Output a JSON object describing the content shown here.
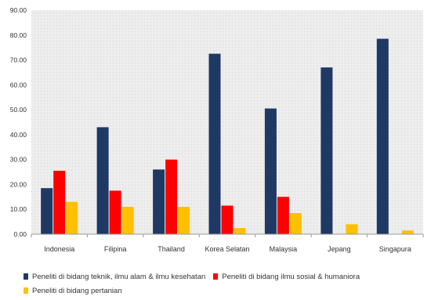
{
  "chart_data": {
    "type": "bar",
    "categories": [
      "Indonesia",
      "Filipina",
      "Thailand",
      "Korea Selatan",
      "Malaysia",
      "Jepang",
      "Singapura"
    ],
    "series": [
      {
        "name": "Peneliti di bidang teknik, ilmu alam & ilmu kesehatan",
        "color": "#1F3864",
        "values": [
          18.5,
          43.0,
          26.0,
          72.5,
          50.5,
          67.0,
          78.5
        ]
      },
      {
        "name": "Peneliti di bidang ilmu sosial & humaniora",
        "color": "#FF0000",
        "values": [
          25.5,
          17.5,
          30.0,
          11.5,
          15.0,
          0,
          0
        ]
      },
      {
        "name": "Peneliti di bidang pertanian",
        "color": "#FFC000",
        "values": [
          13.0,
          11.0,
          11.0,
          2.5,
          8.5,
          4.0,
          1.5
        ]
      }
    ],
    "yticks": [
      "0.00",
      "10.00",
      "20.00",
      "30.00",
      "40.00",
      "50.00",
      "60.00",
      "70.00",
      "80.00",
      "90.00"
    ],
    "ylim": [
      0,
      90
    ],
    "title": "",
    "xlabel": "",
    "ylabel": "",
    "grid": false,
    "legend_position": "bottom"
  }
}
